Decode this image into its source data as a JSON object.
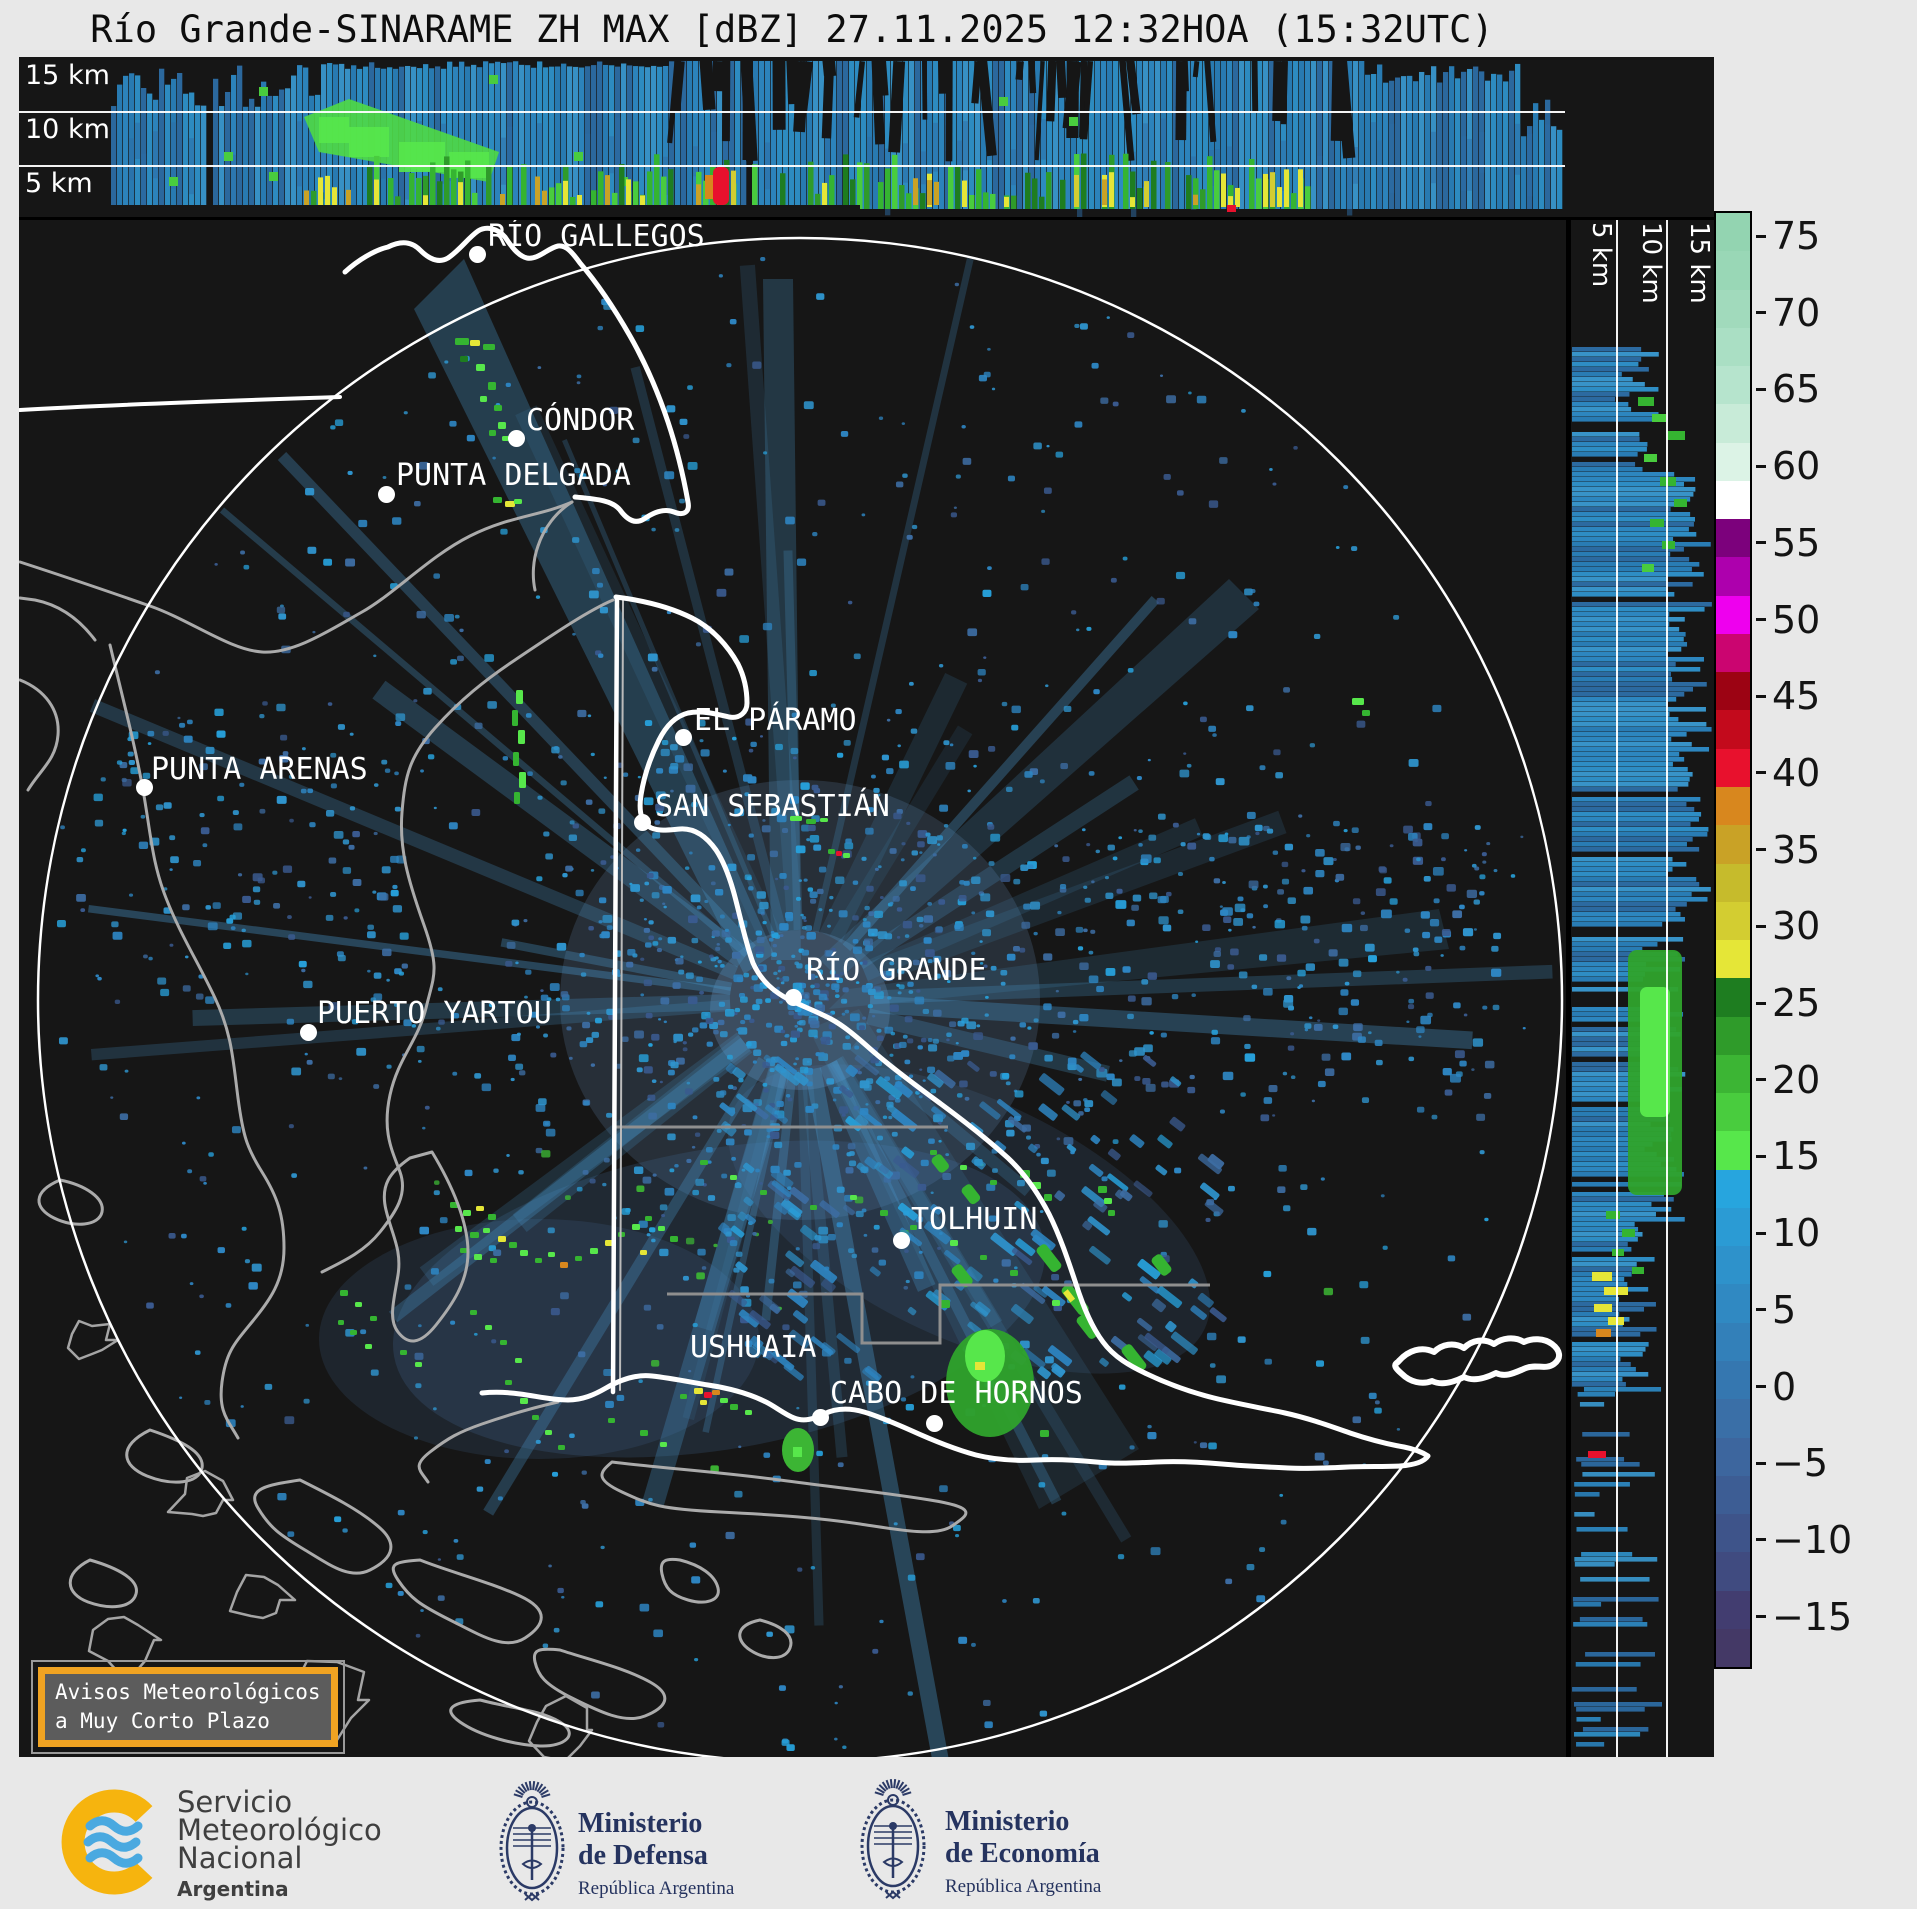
{
  "header": {
    "title": "Río Grande-SINARAME ZH MAX [dBZ] 27.11.2025 12:32HOA (15:32UTC)"
  },
  "top_panel": {
    "altitude_labels": [
      "15 km",
      "10 km",
      "5 km"
    ]
  },
  "right_panel": {
    "altitude_labels": [
      "5 km",
      "10 km",
      "15 km"
    ]
  },
  "colorbar": {
    "unit": "dBZ",
    "tick_labels": [
      "75",
      "70",
      "65",
      "60",
      "55",
      "50",
      "45",
      "40",
      "35",
      "30",
      "25",
      "20",
      "15",
      "10",
      "5",
      "0",
      "−5",
      "−10",
      "−15"
    ],
    "segment_colors_top_to_bottom": [
      "#93d4b1",
      "#99d7b6",
      "#a1dabc",
      "#aadfc4",
      "#b6e4cd",
      "#c8ebd8",
      "#dcf3e6",
      "#ffffff",
      "#7c017c",
      "#ad00ad",
      "#ee00ee",
      "#cb0570",
      "#9c0313",
      "#c30a1c",
      "#e8112d",
      "#d8871e",
      "#c9a226",
      "#c6bb2c",
      "#d3cd31",
      "#e5e637",
      "#1e7d20",
      "#2f9b2a",
      "#3cb534",
      "#49cc3e",
      "#57e74b",
      "#27a5de",
      "#2b9bd4",
      "#2e92cb",
      "#3089c2",
      "#3380b9",
      "#3577b0",
      "#3a6fa7",
      "#3d669e",
      "#3d5d94",
      "#3e548a",
      "#404b80",
      "#423d70",
      "#443966"
    ]
  },
  "map": {
    "cities": [
      {
        "name": "RÍO GALLEGOS",
        "dot": [
          477,
          254
        ],
        "label": [
          488,
          219
        ]
      },
      {
        "name": "CÓNDOR",
        "dot": [
          516,
          438
        ],
        "label": [
          526,
          403
        ]
      },
      {
        "name": "PUNTA DELGADA",
        "dot": [
          386,
          494
        ],
        "label": [
          396,
          458
        ]
      },
      {
        "name": "PUNTA ARENAS",
        "dot": [
          144,
          787
        ],
        "label": [
          151,
          752
        ]
      },
      {
        "name": "EL PÁRAMO",
        "dot": [
          683,
          737
        ],
        "label": [
          694,
          703
        ]
      },
      {
        "name": "SAN SEBASTIÁN",
        "dot": [
          642,
          822
        ],
        "label": [
          655,
          789
        ]
      },
      {
        "name": "RÍO GRANDE",
        "dot": [
          793,
          997
        ],
        "label": [
          806,
          953
        ]
      },
      {
        "name": "PUERTO YARTOU",
        "dot": [
          308,
          1032
        ],
        "label": [
          317,
          996
        ]
      },
      {
        "name": "TOLHUIN",
        "dot": [
          901,
          1240
        ],
        "label": [
          911,
          1202
        ]
      },
      {
        "name": "USHUAIA",
        "dot": [
          820,
          1417
        ],
        "label": [
          690,
          1330
        ]
      },
      {
        "name": "CABO DE HORNOS",
        "dot": [
          934,
          1423
        ],
        "label": [
          830,
          1376
        ]
      }
    ]
  },
  "warning_box": {
    "line1": "Avisos Meteorológicos",
    "line2": "a Muy Corto Plazo",
    "border_color": "#f0a322"
  },
  "footer": {
    "smn": {
      "name_lines": [
        "Servicio",
        "Meteorológico",
        "Nacional"
      ],
      "country": "Argentina"
    },
    "defensa": {
      "ministry_lines": [
        "Ministerio",
        "de Defensa"
      ],
      "country": "República Argentina"
    },
    "economia": {
      "ministry_lines": [
        "Ministerio",
        "de Economía"
      ],
      "country": "República Argentina"
    }
  },
  "colors": {
    "panel_background": "#161616",
    "page_background": "#e8e8e8",
    "coast_white": "#ffffff",
    "coast_gray": "#aaaaaa",
    "echo_blue": "#2e8cc8"
  }
}
